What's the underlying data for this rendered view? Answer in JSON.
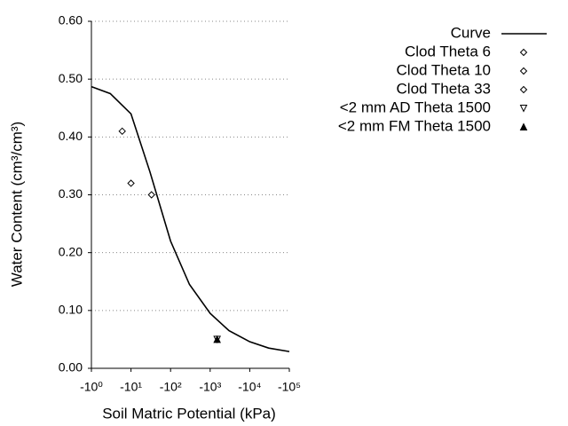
{
  "chart_data": {
    "type": "line",
    "log_x": true,
    "grid": true,
    "xlabel": "Soil Matric Potential (kPa)",
    "ylabel": "Water Content (cm³/cm³)",
    "xlim": [
      -1,
      -100000
    ],
    "ylim": [
      0,
      0.6
    ],
    "xticks": [
      {
        "value": -1,
        "label": "-10⁰"
      },
      {
        "value": -10,
        "label": "-10¹"
      },
      {
        "value": -100,
        "label": "-10²"
      },
      {
        "value": -1000,
        "label": "-10³"
      },
      {
        "value": -10000,
        "label": "-10⁴"
      },
      {
        "value": -100000,
        "label": "-10⁵"
      }
    ],
    "yticks": [
      {
        "value": 0,
        "label": "0.00"
      },
      {
        "value": 0.1,
        "label": "0.10"
      },
      {
        "value": 0.2,
        "label": "0.20"
      },
      {
        "value": 0.3,
        "label": "0.30"
      },
      {
        "value": 0.4,
        "label": "0.40"
      },
      {
        "value": 0.5,
        "label": "0.50"
      },
      {
        "value": 0.6,
        "label": "0.60"
      }
    ],
    "series": [
      {
        "name": "Curve",
        "type": "line",
        "color": "#000000",
        "x": [
          -1,
          -3,
          -10,
          -30,
          -100,
          -300,
          -1000,
          -3000,
          -10000,
          -30000,
          -100000
        ],
        "values": [
          0.487,
          0.475,
          0.44,
          0.34,
          0.22,
          0.145,
          0.095,
          0.065,
          0.046,
          0.035,
          0.029
        ]
      },
      {
        "name": "Clod Theta 6",
        "type": "scatter",
        "marker": "diamond",
        "color": "#000000",
        "x": [
          -6
        ],
        "values": [
          0.41
        ]
      },
      {
        "name": "Clod Theta 10",
        "type": "scatter",
        "marker": "diamond",
        "color": "#000000",
        "x": [
          -10
        ],
        "values": [
          0.32
        ]
      },
      {
        "name": "Clod Theta 33",
        "type": "scatter",
        "marker": "diamond",
        "color": "#000000",
        "x": [
          -33
        ],
        "values": [
          0.3
        ]
      },
      {
        "name": "<2 mm AD Theta 1500",
        "type": "scatter",
        "marker": "triangle-down-open",
        "color": "#000000",
        "x": [
          -1500
        ],
        "values": [
          0.05
        ]
      },
      {
        "name": "<2 mm FM Theta 1500",
        "type": "scatter",
        "marker": "triangle-up-filled",
        "color": "#000000",
        "x": [
          -1500
        ],
        "values": [
          0.05
        ]
      }
    ]
  }
}
